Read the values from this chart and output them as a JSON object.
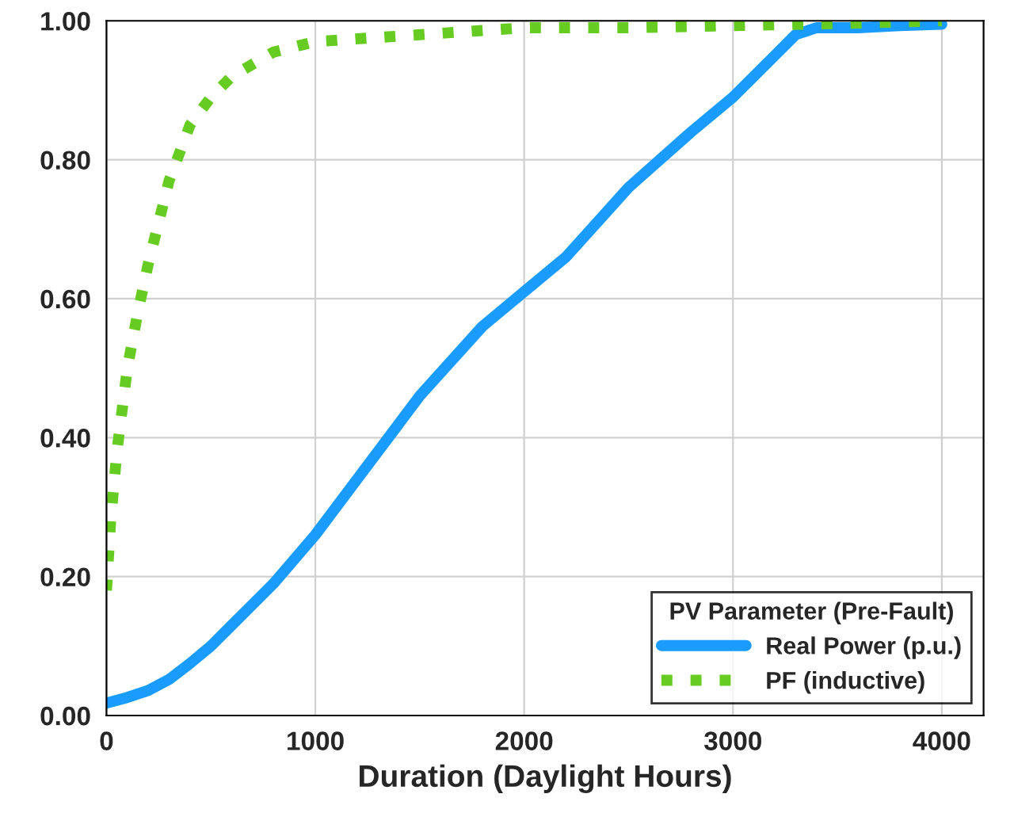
{
  "chart_data": {
    "type": "line",
    "xlabel": "Duration (Daylight Hours)",
    "legend_title": "PV Parameter (Pre-Fault)",
    "legend": "bottom right",
    "grid": true,
    "xlim": [
      0,
      4200
    ],
    "xticks": [
      0,
      1000,
      2000,
      3000,
      4000
    ],
    "ylim": [
      0,
      1
    ],
    "yticks": [
      {
        "value": 0,
        "label": "0.00"
      },
      {
        "value": 0.2,
        "label": "0.20"
      },
      {
        "value": 0.4,
        "label": "0.40"
      },
      {
        "value": 0.6,
        "label": "0.60"
      },
      {
        "value": 0.8,
        "label": "0.80"
      },
      {
        "value": 1,
        "label": "1.00"
      }
    ],
    "series": [
      {
        "name": "Real Power (p.u.)",
        "color": "#1a9cff",
        "line_style": "solid",
        "x": [
          0,
          100,
          200,
          300,
          400,
          500,
          600,
          800,
          1000,
          1200,
          1500,
          1800,
          2000,
          2200,
          2500,
          2800,
          3000,
          3200,
          3300,
          3400,
          3600,
          3800,
          4000
        ],
        "values": [
          0.018,
          0.026,
          0.036,
          0.052,
          0.075,
          0.1,
          0.13,
          0.19,
          0.26,
          0.34,
          0.46,
          0.56,
          0.61,
          0.66,
          0.76,
          0.84,
          0.89,
          0.95,
          0.98,
          0.99,
          0.99,
          0.993,
          0.995
        ]
      },
      {
        "name": "PF (inductive)",
        "color": "#66cc22",
        "line_style": "dotted",
        "x": [
          0,
          20,
          50,
          100,
          150,
          200,
          300,
          400,
          500,
          600,
          800,
          1000,
          1500,
          2000,
          2500,
          3000,
          3500,
          4000
        ],
        "values": [
          0.18,
          0.28,
          0.38,
          0.5,
          0.58,
          0.65,
          0.77,
          0.85,
          0.89,
          0.92,
          0.955,
          0.97,
          0.98,
          0.99,
          0.99,
          0.993,
          0.996,
          1.0
        ]
      }
    ]
  }
}
